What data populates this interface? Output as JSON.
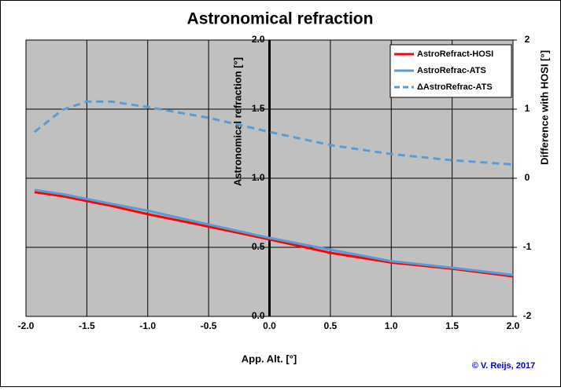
{
  "chart_data": {
    "type": "line",
    "title": "Astronomical refraction",
    "x_label": "App. Alt. [°]",
    "y_label": "Astronomical refraction [°]",
    "y2_label": "Difference with HOSI [°]",
    "credit": "© V. Reijs, 2017",
    "x": [
      -1.93,
      -1.7,
      -1.5,
      -1.3,
      -1.0,
      -0.5,
      0,
      0.5,
      1.0,
      1.5,
      2.0
    ],
    "series": [
      {
        "name": "AstroRefract-HOSI",
        "color": "#ff0000",
        "values": [
          0.9,
          0.87,
          0.835,
          0.8,
          0.74,
          0.65,
          0.557,
          0.46,
          0.39,
          0.345,
          0.29
        ]
      },
      {
        "name": "AstroRefrac-ATS",
        "color": "#5b9bd5",
        "values": [
          0.915,
          0.885,
          0.85,
          0.815,
          0.765,
          0.665,
          0.568,
          0.483,
          0.4,
          0.352,
          0.3
        ]
      },
      {
        "name": "ΔAstroRefrac-ATS",
        "color": "#5b9bd5",
        "dashed": true,
        "axis": "y2",
        "values": [
          0.67,
          0.99,
          1.11,
          1.11,
          1.03,
          0.875,
          0.67,
          0.48,
          0.35,
          0.26,
          0.2
        ]
      }
    ],
    "xlim": [
      -2,
      2
    ],
    "xticks": [
      {
        "value": -2,
        "label": "-2.0"
      },
      {
        "value": -1.5,
        "label": "-1.5"
      },
      {
        "value": -1,
        "label": "-1.0"
      },
      {
        "value": -0.5,
        "label": "-0.5"
      },
      {
        "value": 0,
        "label": "0.0"
      },
      {
        "value": 0.5,
        "label": "0.5"
      },
      {
        "value": 1,
        "label": "1.0"
      },
      {
        "value": 1.5,
        "label": "1.5"
      },
      {
        "value": 2,
        "label": "2.0"
      }
    ],
    "ylim": [
      0,
      2
    ],
    "yticks": [
      {
        "value": 0,
        "label": "0.0"
      },
      {
        "value": 0.5,
        "label": "0.5"
      },
      {
        "value": 1,
        "label": "1.0"
      },
      {
        "value": 1.5,
        "label": "1.5"
      },
      {
        "value": 2,
        "label": "2.0"
      }
    ],
    "y2lim": [
      -2,
      2
    ],
    "y2ticks": [
      -2,
      -1,
      0,
      1,
      2
    ],
    "grid": true,
    "legend": "top-right"
  }
}
